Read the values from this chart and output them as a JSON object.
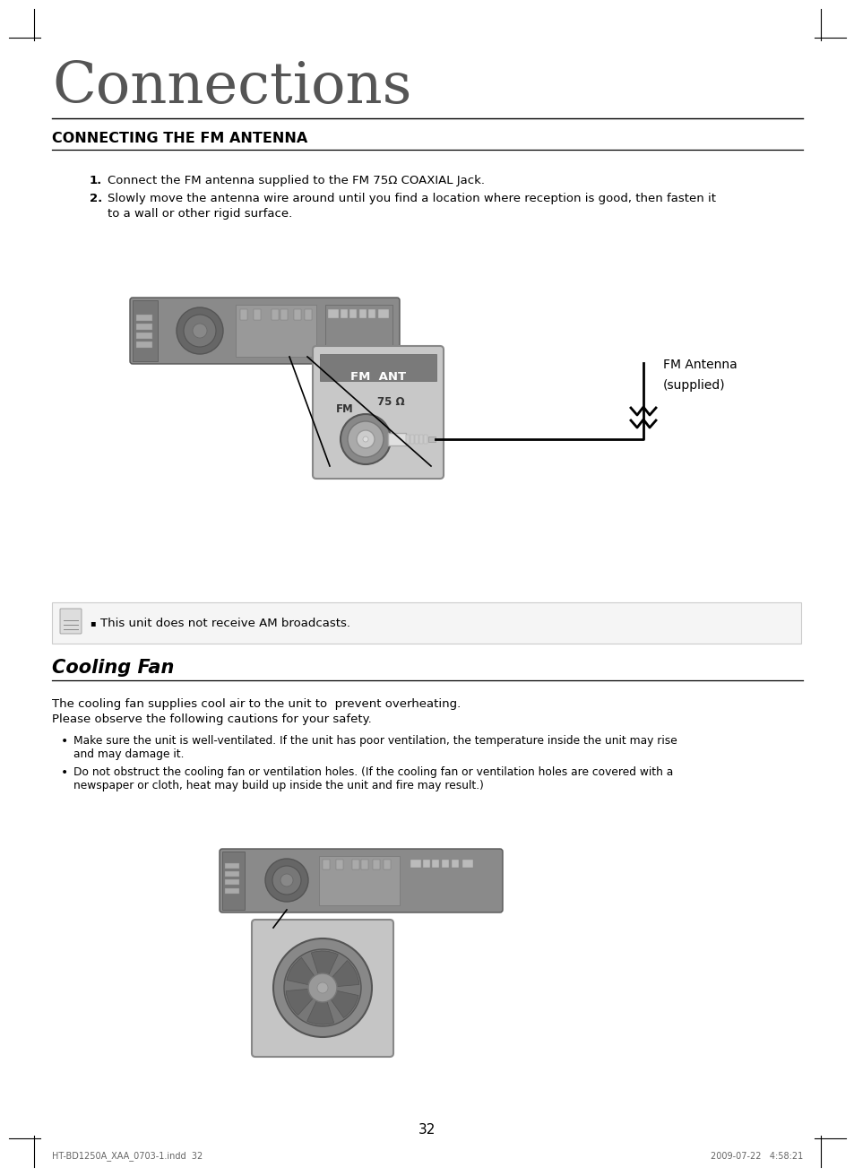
{
  "bg_color": "#ffffff",
  "page_title": "Connections",
  "section1_title": "CONNECTING THE FM ANTENNA",
  "step1": "Connect the FM antenna supplied to the FM 75Ω COAXIAL Jack.",
  "step2_a": "Slowly move the antenna wire around until you find a location where reception is good, then fasten it",
  "step2_b": "to a wall or other rigid surface.",
  "fm_antenna_label_a": "FM Antenna",
  "fm_antenna_label_b": "(supplied)",
  "note_text": "This unit does not receive AM broadcasts.",
  "section2_title": "Cooling Fan",
  "cooling_intro1": "The cooling fan supplies cool air to the unit to  prevent overheating.",
  "cooling_intro2": "Please observe the following cautions for your safety.",
  "bullet1a": "Make sure the unit is well-ventilated. If the unit has poor ventilation, the temperature inside the unit may rise",
  "bullet1b": "and may damage it.",
  "bullet2a": "Do not obstruct the cooling fan or ventilation holes. (If the cooling fan or ventilation holes are covered with a",
  "bullet2b": "newspaper or cloth, heat may build up inside the unit and fire may result.)",
  "page_number": "32",
  "footer_left": "HT-BD1250A_XAA_0703-1.indd  32",
  "footer_right": "2009-07-22   4:58:21",
  "device_color": "#8a8a8a",
  "device_dark": "#666666",
  "device_light": "#aaaaaa",
  "fm_box_color": "#7a7a7a",
  "fm_box_light": "#c0c0c0"
}
